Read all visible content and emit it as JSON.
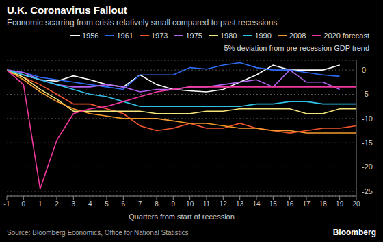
{
  "chart_data": {
    "type": "line",
    "title": "U.K. Coronavirus Fallout",
    "subtitle": "Economic scarring from crisis relatively small compared to past recessions",
    "y_label": "5% deviation from pre-recession GDP trend",
    "x_label": "Quarters from start of recession",
    "source": "Source: Bloomberg Economics, Office for National Statistics",
    "credit": "Bloomberg",
    "x": [
      -1,
      0,
      1,
      2,
      3,
      4,
      5,
      6,
      7,
      8,
      9,
      10,
      11,
      12,
      13,
      14,
      15,
      16,
      17,
      18,
      19,
      20
    ],
    "xlim": [
      -1,
      20
    ],
    "xticks": [
      -1,
      0,
      1,
      2,
      3,
      4,
      5,
      6,
      7,
      8,
      9,
      10,
      11,
      12,
      13,
      14,
      15,
      16,
      17,
      18,
      19,
      20
    ],
    "ylim": [
      -26,
      2
    ],
    "yticks": [
      -25,
      -20,
      -15,
      -10,
      -5,
      0
    ],
    "grid": true,
    "legend": "top",
    "series": [
      {
        "name": "1956",
        "color": "#ffffff",
        "values": [
          0,
          -1,
          -2,
          -2.3,
          -1.2,
          -2,
          -3,
          -3.5,
          -1,
          -3,
          -4,
          -4.3,
          -4.5,
          -4,
          -2.5,
          -1,
          1,
          0,
          0,
          0,
          1,
          null
        ]
      },
      {
        "name": "1961",
        "color": "#2f6cf5",
        "values": [
          0,
          -0.5,
          -1.5,
          -2,
          -2.5,
          -3,
          -3.5,
          -4,
          -1,
          -1,
          -1,
          0.5,
          0.2,
          1,
          1.5,
          0.5,
          0,
          0,
          -0.5,
          -1,
          -1.3,
          null
        ]
      },
      {
        "name": "1973",
        "color": "#f0552d",
        "values": [
          0,
          -1.5,
          -3,
          -5,
          -7,
          -7,
          -8,
          -9,
          -11.5,
          -12.5,
          -12,
          -11,
          -12,
          -12,
          -11,
          -12,
          -12.5,
          -13,
          -12.5,
          -12,
          -12,
          -11.5
        ]
      },
      {
        "name": "1975",
        "color": "#b065f0",
        "values": [
          0,
          -0.5,
          -2,
          -3,
          -3.5,
          -3.5,
          -3,
          -3.5,
          -4.5,
          -4,
          -4,
          -3.5,
          -3.5,
          -3,
          -2.5,
          -2,
          -3.5,
          0,
          -2.5,
          -2.5,
          -4,
          null
        ]
      },
      {
        "name": "1980",
        "color": "#f5e57a",
        "values": [
          0,
          -1.5,
          -4,
          -6,
          -8.5,
          -8.5,
          -8.5,
          -8.5,
          -8.5,
          -9,
          -9,
          -9,
          -8.5,
          -8.5,
          -8,
          -8,
          -8,
          -8,
          -9,
          -9,
          -8,
          -8
        ]
      },
      {
        "name": "1990",
        "color": "#2fc2e8",
        "values": [
          0,
          -1,
          -2,
          -3,
          -4,
          -5,
          -5.5,
          -6.5,
          -7.5,
          -7.5,
          -7.5,
          -7.5,
          -7.5,
          -7.5,
          -7.5,
          -7,
          -7,
          -6.5,
          -6.5,
          -7,
          -7,
          -7
        ]
      },
      {
        "name": "2008",
        "color": "#f59a2c",
        "values": [
          0,
          -2,
          -4.5,
          -6.5,
          -8,
          -9,
          -9.5,
          -10,
          -10,
          -10,
          -10.5,
          -11,
          -11,
          -11.5,
          -12,
          -12,
          -12.5,
          -12.5,
          -13,
          -13,
          -13,
          -13
        ]
      },
      {
        "name": "2020 forecast",
        "color": "#f0389e",
        "values": [
          0,
          -3,
          -24.5,
          -14.5,
          -9,
          -8,
          -7.5,
          -6.5,
          -5.5,
          -4.5,
          -4,
          -3.5,
          -3.5,
          -3.5,
          -3.5,
          -3.5,
          -3.5,
          -3.5,
          -3.5,
          -3.5,
          -3.5,
          -3.5
        ]
      }
    ]
  }
}
